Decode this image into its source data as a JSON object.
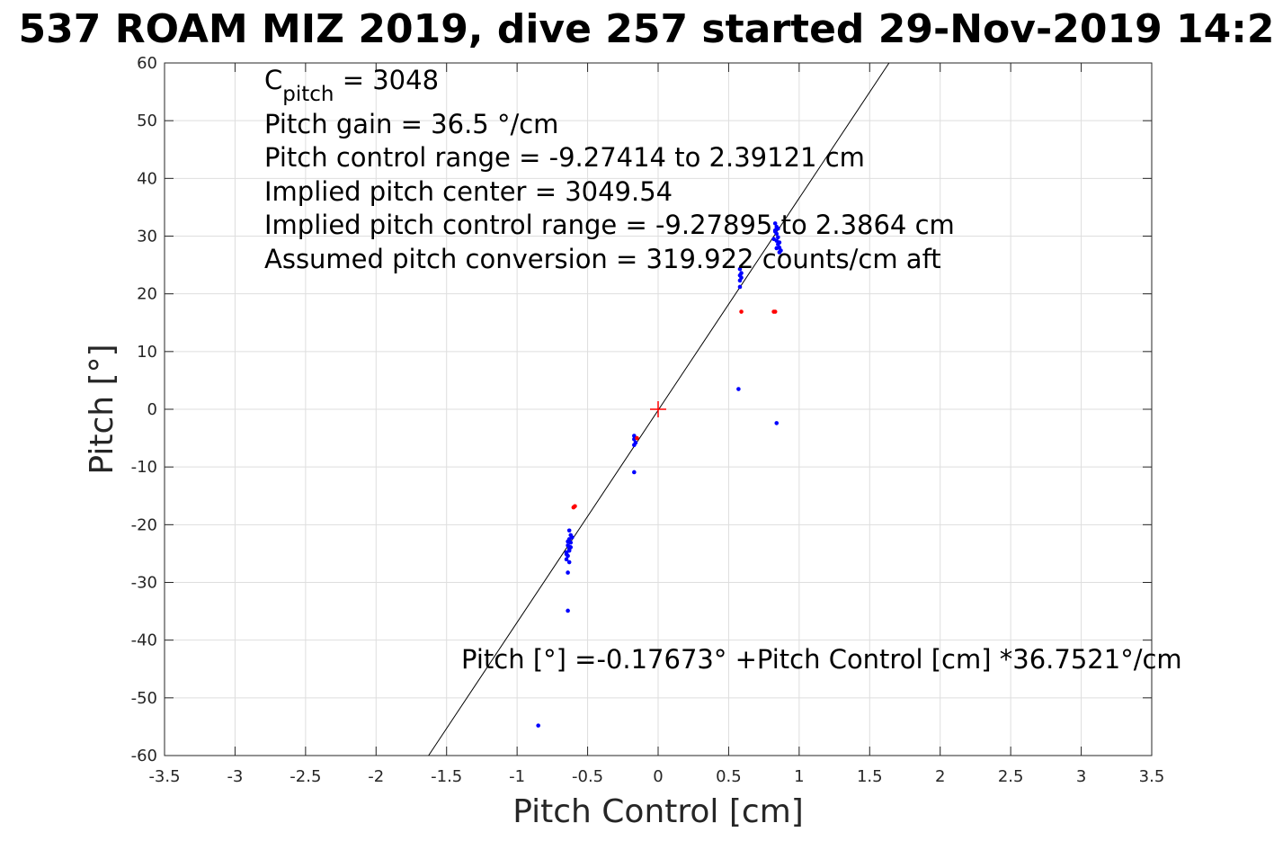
{
  "chart_data": {
    "type": "scatter",
    "title": "537 ROAM MIZ 2019, dive 257 started 29-Nov-2019 14:2",
    "xlabel": "Pitch Control [cm]",
    "ylabel": "Pitch [°]",
    "xlim": [
      -3.5,
      3.5
    ],
    "ylim": [
      -60,
      60
    ],
    "grid": true,
    "xticks": [
      -3.5,
      -3,
      -2.5,
      -2,
      -1.5,
      -1,
      -0.5,
      0,
      0.5,
      1,
      1.5,
      2,
      2.5,
      3,
      3.5
    ],
    "xtick_labels": [
      "-3.5",
      "-3",
      "-2.5",
      "-2",
      "-1.5",
      "-1",
      "-0.5",
      "0",
      "0.5",
      "1",
      "1.5",
      "2",
      "2.5",
      "3",
      "3.5"
    ],
    "yticks": [
      60,
      50,
      40,
      30,
      20,
      10,
      0,
      -10,
      -20,
      -30,
      -40,
      -50,
      -60
    ],
    "ytick_labels": [
      "60",
      "50",
      "40",
      "30",
      "20",
      "10",
      "0",
      "-10",
      "-20",
      "-30",
      "-40",
      "-50",
      "-60"
    ],
    "annotations": {
      "cpitch_base": "C",
      "cpitch_sub": "pitch",
      "cpitch_value": " = 3048",
      "line2": "Pitch gain = 36.5 °/cm",
      "line3": "Pitch control range = -9.27414 to 2.39121 cm",
      "line4": "Implied pitch center = 3049.54",
      "line5": "Implied pitch control range = -9.27895 to 2.3864 cm",
      "line6": "Assumed pitch conversion = 319.922 counts/cm aft",
      "fit_equation": "Pitch [°] =-0.17673° +Pitch Control [cm] *36.7521°/cm"
    },
    "fit": {
      "intercept": -0.17673,
      "slope": 36.7521
    },
    "center_marker": {
      "x": 0,
      "y": 0,
      "color": "#ff0000"
    },
    "series": [
      {
        "color": "#0000ff",
        "points": [
          [
            0.83,
            32.2
          ],
          [
            0.84,
            31.6
          ],
          [
            0.83,
            31.0
          ],
          [
            0.84,
            30.4
          ],
          [
            0.85,
            29.8
          ],
          [
            0.84,
            29.2
          ],
          [
            0.85,
            28.6
          ],
          [
            0.86,
            28.0
          ],
          [
            0.87,
            27.5
          ],
          [
            0.86,
            27.2
          ],
          [
            0.83,
            30.8
          ],
          [
            0.85,
            31.3
          ],
          [
            0.82,
            29.5
          ],
          [
            0.86,
            28.9
          ],
          [
            0.84,
            27.9
          ],
          [
            0.58,
            24.3
          ],
          [
            0.58,
            23.2
          ],
          [
            0.59,
            22.8
          ],
          [
            0.58,
            22.3
          ],
          [
            0.59,
            23.6
          ],
          [
            0.58,
            21.2
          ],
          [
            0.57,
            3.5
          ],
          [
            0.84,
            -2.4
          ],
          [
            -0.17,
            -4.6
          ],
          [
            -0.17,
            -5.2
          ],
          [
            -0.16,
            -5.8
          ],
          [
            -0.17,
            -6.2
          ],
          [
            -0.17,
            -10.9
          ],
          [
            -0.63,
            -21.0
          ],
          [
            -0.62,
            -21.8
          ],
          [
            -0.63,
            -22.5
          ],
          [
            -0.62,
            -23.1
          ],
          [
            -0.64,
            -23.6
          ],
          [
            -0.63,
            -24.2
          ],
          [
            -0.65,
            -24.8
          ],
          [
            -0.64,
            -25.4
          ],
          [
            -0.65,
            -26.0
          ],
          [
            -0.63,
            -26.5
          ],
          [
            -0.64,
            -22.9
          ],
          [
            -0.62,
            -23.9
          ],
          [
            -0.65,
            -25.1
          ],
          [
            -0.63,
            -24.5
          ],
          [
            -0.61,
            -22.2
          ],
          [
            -0.64,
            -28.3
          ],
          [
            -0.64,
            -34.9
          ],
          [
            -0.85,
            -54.8
          ]
        ]
      },
      {
        "color": "#ff0000",
        "points": [
          [
            0.83,
            16.9
          ],
          [
            0.82,
            16.9
          ],
          [
            0.59,
            16.9
          ],
          [
            -0.15,
            -5.0
          ],
          [
            -0.59,
            -16.8
          ],
          [
            -0.6,
            -17.0
          ]
        ]
      }
    ]
  }
}
